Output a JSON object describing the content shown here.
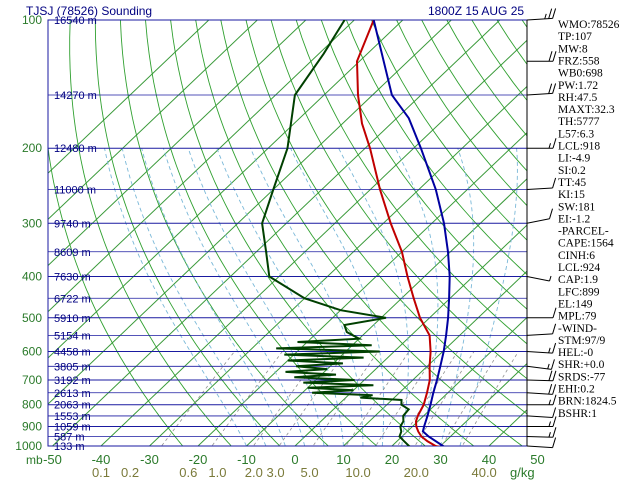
{
  "header": {
    "station": "TJSJ (78526) Sounding",
    "time": "1800Z 15 AUG 25"
  },
  "chart_data": {
    "type": "skew-t",
    "pressure_levels": [
      100,
      200,
      300,
      400,
      500,
      600,
      700,
      800,
      900,
      1000
    ],
    "pressure_tick_labels": [
      "100",
      "200",
      "300",
      "400",
      "500",
      "600",
      "700",
      "800",
      "900",
      "1000"
    ],
    "temp_axis_ticks": [
      {
        "v": -50,
        "label": "-50"
      },
      {
        "v": -40,
        "label": "-40"
      },
      {
        "v": -30,
        "label": "-30"
      },
      {
        "v": -20,
        "label": "-20"
      },
      {
        "v": -10,
        "label": "-10"
      },
      {
        "v": 0,
        "label": "0"
      },
      {
        "v": 10,
        "label": "10"
      },
      {
        "v": 20,
        "label": "20"
      },
      {
        "v": 30,
        "label": "30"
      },
      {
        "v": 40,
        "label": "40"
      },
      {
        "v": 50,
        "label": "50"
      }
    ],
    "x_axis_prefix": "mb",
    "mixing_ratio_labels": [
      {
        "label": "0.1",
        "at": -40
      },
      {
        "label": "0.2",
        "at": -34
      },
      {
        "label": "0.6",
        "at": -22
      },
      {
        "label": "1.0",
        "at": -16
      },
      {
        "label": "2.0",
        "at": -8.5
      },
      {
        "label": "3.0",
        "at": -4
      },
      {
        "label": "5.0",
        "at": 3
      },
      {
        "label": "10.0",
        "at": 13
      },
      {
        "label": "20.0",
        "at": 25
      },
      {
        "label": "40.0",
        "at": 39
      }
    ],
    "mixing_ratio_unit": "g/kg",
    "height_labels": [
      {
        "p": 100,
        "label": "16540 m"
      },
      {
        "p": 150,
        "label": "14270 m"
      },
      {
        "p": 200,
        "label": "12480 m"
      },
      {
        "p": 250,
        "label": "11000 m"
      },
      {
        "p": 300,
        "label": "9740 m"
      },
      {
        "p": 350,
        "label": "8609 m"
      },
      {
        "p": 400,
        "label": "7630 m"
      },
      {
        "p": 450,
        "label": "6722 m"
      },
      {
        "p": 500,
        "label": "5910 m"
      },
      {
        "p": 550,
        "label": "5154 m"
      },
      {
        "p": 600,
        "label": "4458 m"
      },
      {
        "p": 650,
        "label": "3805 m"
      },
      {
        "p": 700,
        "label": "3192 m"
      },
      {
        "p": 750,
        "label": "2613 m"
      },
      {
        "p": 800,
        "label": "2063 m"
      },
      {
        "p": 850,
        "label": "1553 m"
      },
      {
        "p": 900,
        "label": "1059 m"
      },
      {
        "p": 950,
        "label": "587 m"
      },
      {
        "p": 1000,
        "label": "133 m"
      }
    ],
    "series": [
      {
        "kind": "temperature",
        "color": "#c00000",
        "points": [
          [
            1013,
            31.8
          ],
          [
            1000,
            29
          ],
          [
            975,
            26.3
          ],
          [
            950,
            24
          ],
          [
            925,
            22.3
          ],
          [
            900,
            20.8
          ],
          [
            875,
            19.6
          ],
          [
            850,
            18.8
          ],
          [
            800,
            17.6
          ],
          [
            750,
            15.7
          ],
          [
            700,
            13.5
          ],
          [
            650,
            10.5
          ],
          [
            600,
            7.5
          ],
          [
            550,
            3.8
          ],
          [
            500,
            -2
          ],
          [
            450,
            -7.5
          ],
          [
            400,
            -13.5
          ],
          [
            350,
            -20
          ],
          [
            300,
            -28.5
          ],
          [
            250,
            -38
          ],
          [
            200,
            -49
          ],
          [
            175,
            -56
          ],
          [
            150,
            -63
          ],
          [
            125,
            -70.5
          ],
          [
            100,
            -76
          ],
          [
            90,
            -75.5
          ]
        ]
      },
      {
        "kind": "dewpoint",
        "color": "#004000",
        "points": [
          [
            1013,
            24.5
          ],
          [
            1000,
            23.5
          ],
          [
            975,
            21.5
          ],
          [
            950,
            19.5
          ],
          [
            925,
            18.8
          ],
          [
            900,
            17.5
          ],
          [
            875,
            17
          ],
          [
            850,
            15.8
          ],
          [
            820,
            15.5
          ],
          [
            800,
            13
          ],
          [
            780,
            12
          ],
          [
            770,
            3
          ],
          [
            760,
            5
          ],
          [
            750,
            -8
          ],
          [
            740,
            0
          ],
          [
            730,
            -10
          ],
          [
            720,
            3
          ],
          [
            710,
            -12
          ],
          [
            700,
            -2
          ],
          [
            690,
            -15
          ],
          [
            680,
            -7
          ],
          [
            670,
            -18
          ],
          [
            660,
            -10
          ],
          [
            650,
            -17
          ],
          [
            640,
            -8
          ],
          [
            630,
            -20
          ],
          [
            620,
            -5
          ],
          [
            610,
            -22
          ],
          [
            600,
            -3
          ],
          [
            590,
            -25
          ],
          [
            580,
            -6
          ],
          [
            570,
            -22
          ],
          [
            560,
            -10
          ],
          [
            540,
            -14
          ],
          [
            520,
            -16
          ],
          [
            500,
            -9
          ],
          [
            480,
            -20
          ],
          [
            450,
            -30
          ],
          [
            400,
            -42
          ],
          [
            350,
            -48
          ],
          [
            300,
            -55
          ],
          [
            250,
            -60
          ],
          [
            200,
            -66
          ],
          [
            150,
            -76
          ],
          [
            120,
            -79
          ],
          [
            100,
            -82
          ],
          [
            90,
            -83
          ]
        ]
      },
      {
        "kind": "parcel",
        "color": "#0000a0",
        "points": [
          [
            1013,
            31.8
          ],
          [
            950,
            25.5
          ],
          [
            924,
            23.2
          ],
          [
            900,
            22.4
          ],
          [
            850,
            20.8
          ],
          [
            800,
            19
          ],
          [
            750,
            17
          ],
          [
            700,
            15
          ],
          [
            650,
            12.7
          ],
          [
            600,
            10.2
          ],
          [
            550,
            7.2
          ],
          [
            500,
            3.8
          ],
          [
            450,
            -0.2
          ],
          [
            400,
            -4.8
          ],
          [
            350,
            -10.5
          ],
          [
            300,
            -17.5
          ],
          [
            250,
            -26.5
          ],
          [
            200,
            -38.5
          ],
          [
            170,
            -47.5
          ],
          [
            150,
            -56
          ],
          [
            125,
            -65
          ],
          [
            100,
            -76
          ]
        ]
      }
    ],
    "skew": true,
    "log_pressure_axis": true,
    "grid": true
  },
  "indices": [
    "WMO:78526",
    "TP:107",
    "MW:8",
    "FRZ:558",
    "WB0:698",
    "PW:1.72",
    "RH:47.5",
    "MAXT:32.3",
    "TH:5777",
    "L57:6.3",
    "LCL:918",
    "LI:-4.9",
    "SI:0.2",
    "TT:45",
    "KI:15",
    "SW:181",
    "EI:-1.2",
    "-PARCEL-",
    "CAPE:1564",
    "CINH:6",
    "LCL:924",
    "CAP:1.9",
    "LFC:899",
    "EL:149",
    "MPL:79",
    "-WIND-",
    "STM:97/9",
    "HEL:-0",
    "SHR:+0.0",
    "SRDS:-77",
    "EHI:0.2",
    "BRN:1824.5",
    "BSHR:1"
  ],
  "wind_barbs": [
    {
      "p": 1000,
      "dir": 100,
      "spd": 10
    },
    {
      "p": 950,
      "dir": 95,
      "spd": 15
    },
    {
      "p": 900,
      "dir": 90,
      "spd": 15
    },
    {
      "p": 850,
      "dir": 100,
      "spd": 10
    },
    {
      "p": 800,
      "dir": 90,
      "spd": 15
    },
    {
      "p": 750,
      "dir": 100,
      "spd": 20
    },
    {
      "p": 700,
      "dir": 95,
      "spd": 20
    },
    {
      "p": 650,
      "dir": 110,
      "spd": 15
    },
    {
      "p": 600,
      "dir": 100,
      "spd": 15
    },
    {
      "p": 550,
      "dir": 80,
      "spd": 10
    },
    {
      "p": 500,
      "dir": 90,
      "spd": 10
    },
    {
      "p": 400,
      "dir": 120,
      "spd": 5
    },
    {
      "p": 300,
      "dir": 60,
      "spd": 10
    },
    {
      "p": 250,
      "dir": 80,
      "spd": 10
    },
    {
      "p": 200,
      "dir": 90,
      "spd": 15
    },
    {
      "p": 150,
      "dir": 80,
      "spd": 20
    },
    {
      "p": 125,
      "dir": 90,
      "spd": 20
    },
    {
      "p": 100,
      "dir": 80,
      "spd": 25
    }
  ],
  "colors": {
    "isobar": "#1a1aa0",
    "isotherm": "#3a9a3a",
    "dry_adiabat": "#30a030",
    "moist_adiabat": "#7ab8d8",
    "mixing_ratio": "#909090",
    "axis_text": "#2a7a2a",
    "label_text": "#000080"
  }
}
